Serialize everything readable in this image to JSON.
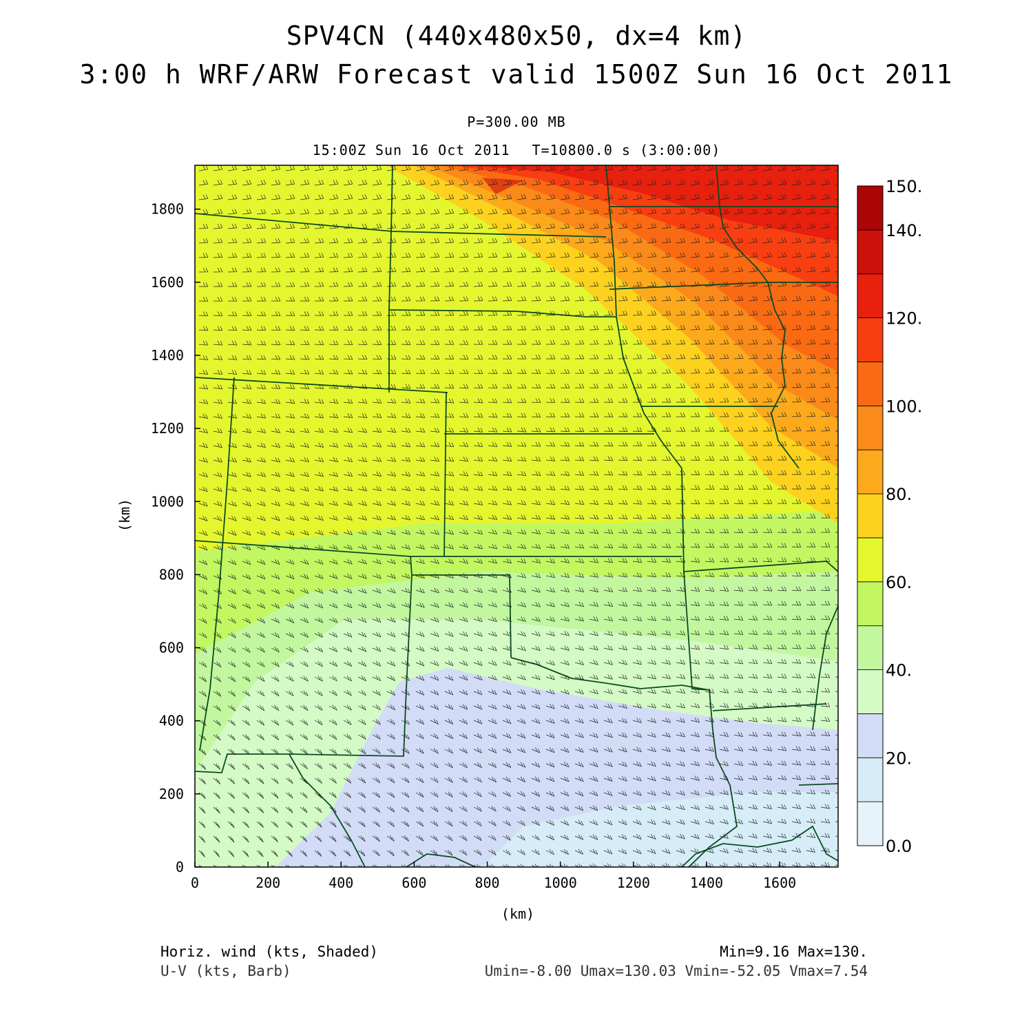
{
  "header": {
    "title_line1": "SPV4CN (440x480x50, dx=4 km)",
    "title_line2": "3:00 h WRF/ARW Forecast valid 1500Z Sun 16 Oct 2011",
    "level": "P=300.00 MB",
    "valid_time": "15:00Z Sun 16 Oct 2011",
    "elapsed": "T=10800.0 s (3:00:00)"
  },
  "axes": {
    "x_label": "(km)",
    "y_label": "(km)",
    "x_ticks": [
      "0",
      "200",
      "400",
      "600",
      "800",
      "1000",
      "1200",
      "1400",
      "1600"
    ],
    "y_ticks": [
      "0",
      "200",
      "400",
      "600",
      "800",
      "1000",
      "1200",
      "1400",
      "1600",
      "1800"
    ],
    "x_range": [
      0,
      1760
    ],
    "y_range": [
      0,
      1920
    ]
  },
  "colorbar": {
    "labels": [
      "0.0",
      "20.",
      "40.",
      "60.",
      "80.",
      "100.",
      "120.",
      "140.",
      "150."
    ],
    "colors": [
      "#e6f3fb",
      "#d6ecf7",
      "#d2dcf6",
      "#d4fac6",
      "#c2f79f",
      "#c2f762",
      "#e4f72e",
      "#fcd21e",
      "#fcaa1c",
      "#fa8a19",
      "#fa6a13",
      "#f83f11",
      "#e8200e",
      "#cc100b",
      "#aa0606"
    ]
  },
  "footer": {
    "field_label": "Horiz. wind (kts, Shaded)",
    "barb_label": "U-V (kts, Barb)",
    "min_max": "Min=9.16  Max=130.",
    "uv_stats": "Umin=-8.00 Umax=130.03 Vmin=-52.05 Vmax=7.54"
  }
}
